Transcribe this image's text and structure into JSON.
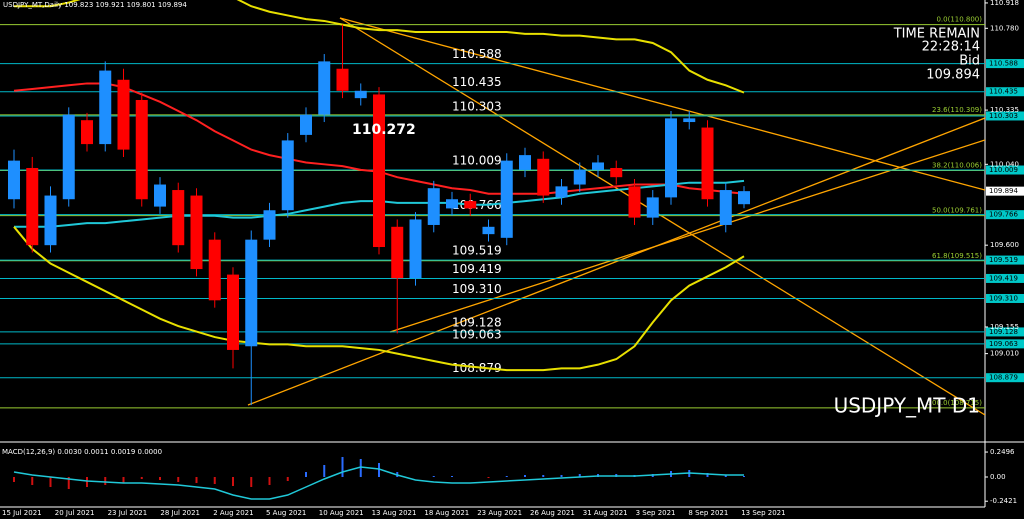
{
  "header": {
    "symbol_line": "USDJPY_MT,Daily  109.823 109.921 109.801 109.894"
  },
  "info": {
    "time_label": "TIME REMAIN",
    "time": "22:28:14",
    "bid_label": "Bid",
    "bid": "109.894"
  },
  "annotation": "110.272",
  "watermark": "USDJPY_MT D1",
  "chart_data": {
    "type": "candlestick",
    "ylim": [
      108.54,
      110.934
    ],
    "yticks": [
      110.918,
      {
        "value": 110.78,
        "label": "110.780"
      },
      110.335,
      {
        "value": 110.04,
        "label": "110.040"
      },
      {
        "value": 109.6,
        "label": "109.600"
      },
      109.155,
      {
        "value": 109.01,
        "label": "109.010"
      }
    ],
    "current": 109.894,
    "levels": [
      {
        "value": 110.588,
        "label": "110.588"
      },
      {
        "value": 110.435,
        "label": "110.435"
      },
      {
        "value": 110.303,
        "label": "110.303"
      },
      {
        "value": 110.009,
        "label": "110.009"
      },
      {
        "value": 109.766,
        "label": "109.766"
      },
      {
        "value": 109.519,
        "label": "109.519"
      },
      {
        "value": 109.419,
        "label": "109.419"
      },
      {
        "value": 109.31,
        "label": "109.310"
      },
      {
        "value": 109.128,
        "label": "109.128"
      },
      {
        "value": 109.063,
        "label": "109.063"
      },
      {
        "value": 108.879,
        "label": "108.879"
      }
    ],
    "fib": [
      {
        "value": 110.8,
        "label": "0.0(110.800)"
      },
      {
        "value": 110.309,
        "label": "23.6(110.309)"
      },
      {
        "value": 110.006,
        "label": "38.2(110.006)"
      },
      {
        "value": 109.761,
        "label": "50.0(109.761)"
      },
      {
        "value": 109.515,
        "label": "61.8(109.515)"
      },
      {
        "value": 108.715,
        "label": "100.0(108.715)"
      }
    ],
    "up_color": "#1e8fff",
    "down_color": "#ff0000",
    "open": [
      109.85,
      110.02,
      109.6,
      109.85,
      110.28,
      110.15,
      110.5,
      110.39,
      109.81,
      109.9,
      109.87,
      109.63,
      109.44,
      109.05,
      109.63,
      109.79,
      110.2,
      110.31,
      110.56,
      110.4,
      110.42,
      109.7,
      109.42,
      109.71,
      109.8,
      109.84,
      109.66,
      109.64,
      110.01,
      110.07,
      109.86,
      109.93,
      110.01,
      110.02,
      109.92,
      109.75,
      109.86,
      110.27,
      110.24,
      109.71,
      109.823
    ],
    "high": [
      110.12,
      110.08,
      109.92,
      110.35,
      110.32,
      110.6,
      110.56,
      110.43,
      109.97,
      109.94,
      109.91,
      109.67,
      109.48,
      109.68,
      109.83,
      110.21,
      110.35,
      110.64,
      110.8,
      110.48,
      110.46,
      109.74,
      109.78,
      109.95,
      109.89,
      109.88,
      109.74,
      110.1,
      110.13,
      110.11,
      109.96,
      110.05,
      110.09,
      110.06,
      109.96,
      109.9,
      110.33,
      110.33,
      110.28,
      109.94,
      109.921
    ],
    "low": [
      109.8,
      109.56,
      109.56,
      109.81,
      110.11,
      110.11,
      110.08,
      109.81,
      109.77,
      109.56,
      109.43,
      109.26,
      108.93,
      108.73,
      109.59,
      109.75,
      110.16,
      110.27,
      110.4,
      110.36,
      109.55,
      109.12,
      109.38,
      109.67,
      109.76,
      109.76,
      109.62,
      109.6,
      109.97,
      109.83,
      109.82,
      109.89,
      109.97,
      109.93,
      109.71,
      109.71,
      109.82,
      110.23,
      109.81,
      109.67,
      109.801
    ],
    "close": [
      110.06,
      109.6,
      109.87,
      110.31,
      110.15,
      110.55,
      110.12,
      109.85,
      109.93,
      109.6,
      109.47,
      109.3,
      109.03,
      109.63,
      109.79,
      110.17,
      110.31,
      110.6,
      110.44,
      110.44,
      109.59,
      109.42,
      109.74,
      109.91,
      109.85,
      109.8,
      109.7,
      110.06,
      110.09,
      109.87,
      109.92,
      110.01,
      110.05,
      109.97,
      109.75,
      109.86,
      110.29,
      110.29,
      109.85,
      109.9,
      109.894
    ],
    "lines": [
      {
        "color": "#ff2020",
        "values": [
          110.44,
          110.45,
          110.46,
          110.47,
          110.48,
          110.48,
          110.46,
          110.42,
          110.38,
          110.33,
          110.28,
          110.22,
          110.17,
          110.12,
          110.09,
          110.07,
          110.05,
          110.04,
          110.03,
          110.01,
          110.0,
          109.97,
          109.95,
          109.93,
          109.91,
          109.9,
          109.88,
          109.88,
          109.88,
          109.88,
          109.89,
          109.9,
          109.91,
          109.92,
          109.93,
          109.93,
          109.93,
          109.91,
          109.9,
          109.89,
          109.88
        ]
      },
      {
        "color": "#20c8d8",
        "values": [
          109.7,
          109.7,
          109.7,
          109.71,
          109.72,
          109.72,
          109.73,
          109.74,
          109.75,
          109.76,
          109.76,
          109.76,
          109.75,
          109.75,
          109.76,
          109.77,
          109.79,
          109.81,
          109.83,
          109.84,
          109.84,
          109.83,
          109.83,
          109.83,
          109.83,
          109.82,
          109.82,
          109.83,
          109.84,
          109.85,
          109.86,
          109.88,
          109.89,
          109.9,
          109.91,
          109.92,
          109.93,
          109.94,
          109.94,
          109.94,
          109.95
        ]
      },
      {
        "color": "#e8e000",
        "values": [
          110.9,
          110.9,
          110.9,
          110.92,
          110.95,
          110.98,
          111.0,
          111.0,
          111.0,
          111.0,
          111.0,
          110.97,
          110.95,
          110.9,
          110.87,
          110.85,
          110.83,
          110.82,
          110.8,
          110.78,
          110.77,
          110.77,
          110.76,
          110.76,
          110.76,
          110.76,
          110.76,
          110.76,
          110.75,
          110.75,
          110.74,
          110.74,
          110.73,
          110.72,
          110.72,
          110.7,
          110.65,
          110.55,
          110.5,
          110.47,
          110.43
        ]
      },
      {
        "color": "#e8e000",
        "values": [
          109.7,
          109.58,
          109.5,
          109.45,
          109.4,
          109.35,
          109.3,
          109.25,
          109.2,
          109.16,
          109.13,
          109.1,
          109.08,
          109.07,
          109.06,
          109.06,
          109.05,
          109.05,
          109.05,
          109.04,
          109.03,
          109.01,
          108.99,
          108.97,
          108.95,
          108.94,
          108.93,
          108.92,
          108.92,
          108.92,
          108.93,
          108.93,
          108.95,
          108.98,
          109.05,
          109.18,
          109.3,
          109.38,
          109.43,
          109.48,
          109.54
        ]
      }
    ],
    "dates": [
      "15 Jul 2021",
      "20 Jul 2021",
      "23 Jul 2021",
      "28 Jul 2021",
      "2 Aug 2021",
      "5 Aug 2021",
      "10 Aug 2021",
      "13 Aug 2021",
      "18 Aug 2021",
      "23 Aug 2021",
      "26 Aug 2021",
      "31 Aug 2021",
      "3 Sep 2021",
      "8 Sep 2021",
      "13 Sep 2021"
    ]
  },
  "macd": {
    "type": "histogram",
    "title": "MACD(12,26,9) 0.0030 0.0011 0.0019 0.0000",
    "ylim": [
      -0.3,
      0.3
    ],
    "yticks": [
      0.2496,
      {
        "value": 0,
        "label": "0.00"
      },
      -0.2421
    ],
    "hist_up": "#2a6cff",
    "hist_down": "#d01010",
    "hist": [
      -0.05,
      -0.08,
      -0.1,
      -0.12,
      -0.1,
      -0.08,
      -0.06,
      -0.02,
      -0.03,
      -0.05,
      -0.06,
      -0.07,
      -0.09,
      -0.1,
      -0.08,
      -0.04,
      0.05,
      0.12,
      0.2,
      0.18,
      0.14,
      0.05,
      0.0,
      0.01,
      0.01,
      0.0,
      -0.01,
      0.01,
      0.02,
      0.02,
      0.02,
      0.03,
      0.03,
      0.03,
      0.02,
      0.03,
      0.06,
      0.07,
      0.04,
      0.02,
      0.01
    ],
    "signal_color": "#20c8d8",
    "signal": [
      0.05,
      0.02,
      0.0,
      -0.02,
      -0.04,
      -0.05,
      -0.06,
      -0.06,
      -0.07,
      -0.08,
      -0.1,
      -0.12,
      -0.18,
      -0.22,
      -0.22,
      -0.18,
      -0.1,
      -0.02,
      0.05,
      0.1,
      0.08,
      0.02,
      -0.03,
      -0.05,
      -0.06,
      -0.06,
      -0.05,
      -0.04,
      -0.03,
      -0.02,
      -0.01,
      0.0,
      0.01,
      0.01,
      0.01,
      0.02,
      0.03,
      0.04,
      0.03,
      0.02,
      0.02
    ]
  }
}
